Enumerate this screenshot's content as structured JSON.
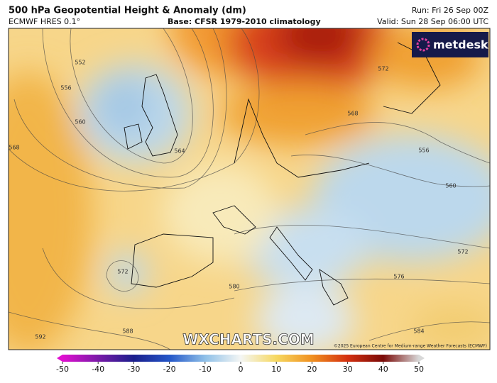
{
  "header": {
    "title": "500 hPa Geopotential Height & Anomaly (dm)",
    "model": "ECMWF HRES 0.1°",
    "base": "Base: CFSR 1979-2010 climatology",
    "run": "Run: Fri 26 Sep 00Z",
    "valid": "Valid: Sun 28 Sep 06:00 UTC"
  },
  "map": {
    "logo": "metdesk",
    "watermark": "WXCHARTS.COM",
    "credit": "©2025 European Centre for Medium-range Weather Forecasts (ECMWF)",
    "contour_labels": [
      "552",
      "556",
      "560",
      "568",
      "564",
      "572",
      "568",
      "556",
      "560",
      "572",
      "576",
      "580",
      "572",
      "588",
      "592",
      "584"
    ]
  },
  "colorbar": {
    "range": [
      -50,
      50
    ],
    "ticks": [
      -50,
      -40,
      -30,
      -20,
      -10,
      0,
      10,
      20,
      30,
      40,
      50
    ]
  }
}
